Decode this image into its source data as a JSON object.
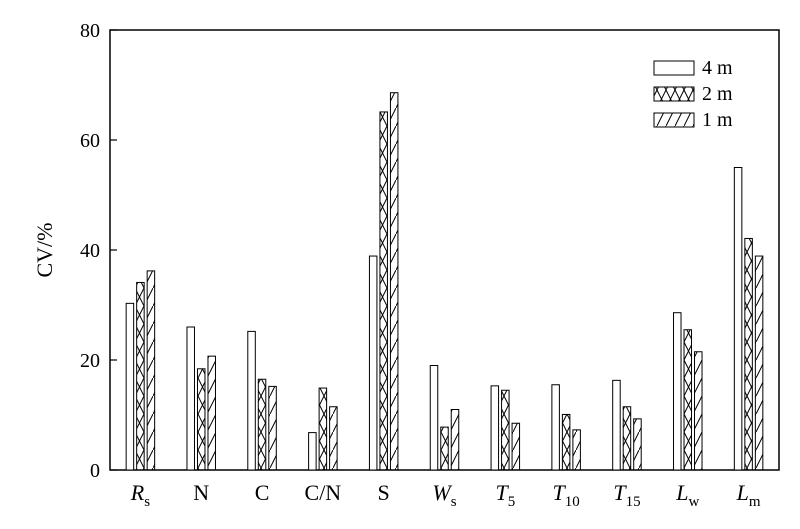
{
  "chart_data": {
    "type": "bar",
    "title": "",
    "xlabel": "",
    "ylabel": "CV/%",
    "ylim": [
      0,
      80
    ],
    "yticks": [
      0,
      20,
      40,
      60,
      80
    ],
    "grid": false,
    "legend_position": "top-right",
    "categories": [
      {
        "main": "R",
        "sub": "s",
        "italic": true
      },
      {
        "main": "N",
        "sub": "",
        "italic": false
      },
      {
        "main": "C",
        "sub": "",
        "italic": false
      },
      {
        "main": "C/N",
        "sub": "",
        "italic": false
      },
      {
        "main": "S",
        "sub": "",
        "italic": false
      },
      {
        "main": "W",
        "sub": "s",
        "italic": true
      },
      {
        "main": "T",
        "sub": "5",
        "italic": true
      },
      {
        "main": "T",
        "sub": "10",
        "italic": true
      },
      {
        "main": "T",
        "sub": "15",
        "italic": true
      },
      {
        "main": "L",
        "sub": "w",
        "italic": true
      },
      {
        "main": "L",
        "sub": "m",
        "italic": true
      }
    ],
    "series": [
      {
        "name": "4 m",
        "pattern": "plain",
        "values": [
          30.3,
          26.0,
          25.2,
          6.8,
          38.9,
          19.0,
          15.3,
          15.5,
          16.3,
          28.6,
          55.0
        ]
      },
      {
        "name": "2 m",
        "pattern": "crosshatch",
        "values": [
          34.1,
          18.4,
          16.5,
          14.9,
          65.1,
          7.8,
          14.5,
          10.1,
          11.5,
          25.5,
          42.1
        ]
      },
      {
        "name": "1 m",
        "pattern": "diagonal",
        "values": [
          36.2,
          20.7,
          15.2,
          11.5,
          68.6,
          11.0,
          8.5,
          7.3,
          9.3,
          21.5,
          38.9
        ]
      }
    ]
  }
}
